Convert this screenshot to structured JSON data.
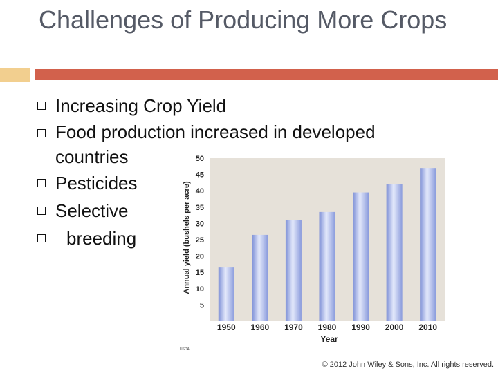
{
  "title": "Challenges of Producing More Crops",
  "bullets": [
    "Increasing Crop Yield",
    "Food production increased in developed countries",
    "Pesticides",
    "Selective",
    "breeding"
  ],
  "copyright": "© 2012 John Wiley & Sons, Inc. All rights reserved.",
  "source_note": "USDA",
  "colors": {
    "accent_bar": "#d2614c",
    "accent_small": "#f2cf8f",
    "chart_bg": "#e6e1d9",
    "bar": "#aab6e6"
  },
  "chart_data": {
    "type": "bar",
    "categories": [
      "1950",
      "1960",
      "1970",
      "1980",
      "1990",
      "2000",
      "2010"
    ],
    "values": [
      16.5,
      26.5,
      31,
      33.5,
      39.5,
      42,
      47
    ],
    "xlabel": "Year",
    "ylabel": "Annual yield (bushels per acre)",
    "ylim": [
      0,
      50
    ],
    "yticks": [
      5,
      10,
      15,
      20,
      25,
      30,
      35,
      40,
      45,
      50
    ]
  }
}
